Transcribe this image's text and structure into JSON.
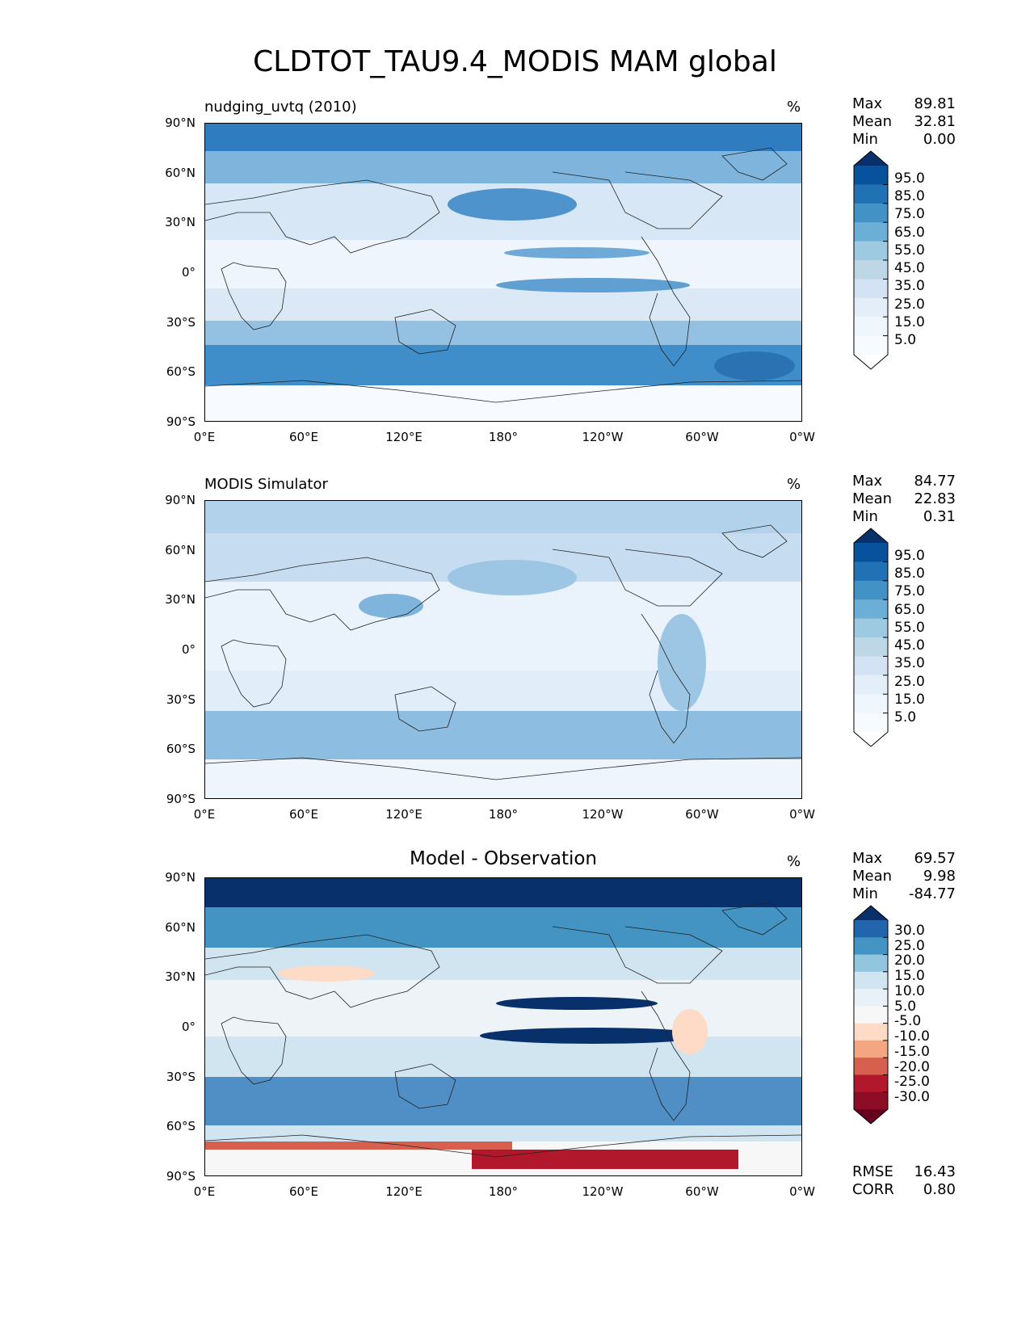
{
  "figure_title": "CLDTOT_TAU9.4_MODIS MAM global",
  "lat_ticks": [
    "90°N",
    "60°N",
    "30°N",
    "0°",
    "30°S",
    "60°S",
    "90°S"
  ],
  "lon_ticks": [
    "0°E",
    "60°E",
    "120°E",
    "180°",
    "120°W",
    "60°W",
    "0°W"
  ],
  "panels": [
    {
      "title": "nudging_uvtq (2010)",
      "units": "%",
      "stats": {
        "max_label": "Max",
        "max": "89.81",
        "mean_label": "Mean",
        "mean": "32.81",
        "min_label": "Min",
        "min": "0.00"
      },
      "colorbar_labels": [
        "95.0",
        "85.0",
        "75.0",
        "65.0",
        "55.0",
        "45.0",
        "35.0",
        "25.0",
        "15.0",
        "5.0"
      ],
      "colorbar_colors": [
        "#08306b",
        "#08519c",
        "#2171b5",
        "#4292c6",
        "#6baed6",
        "#9ecae1",
        "#bdd7e7",
        "#d4e3f3",
        "#e3eef9",
        "#f0f6fd",
        "#f7fbff",
        "#ffffff"
      ]
    },
    {
      "title": "MODIS Simulator",
      "units": "%",
      "stats": {
        "max_label": "Max",
        "max": "84.77",
        "mean_label": "Mean",
        "mean": "22.83",
        "min_label": "Min",
        "min": "0.31"
      },
      "colorbar_labels": [
        "95.0",
        "85.0",
        "75.0",
        "65.0",
        "55.0",
        "45.0",
        "35.0",
        "25.0",
        "15.0",
        "5.0"
      ],
      "colorbar_colors": [
        "#08306b",
        "#08519c",
        "#2171b5",
        "#4292c6",
        "#6baed6",
        "#9ecae1",
        "#bdd7e7",
        "#d4e3f3",
        "#e3eef9",
        "#f0f6fd",
        "#f7fbff",
        "#ffffff"
      ]
    },
    {
      "title": "Model - Observation",
      "units": "%",
      "stats": {
        "max_label": "Max",
        "max": "69.57",
        "mean_label": "Mean",
        "mean": "9.98",
        "min_label": "Min",
        "min": "-84.77"
      },
      "colorbar_labels": [
        "30.0",
        "25.0",
        "20.0",
        "15.0",
        "10.0",
        "5.0",
        "-5.0",
        "-10.0",
        "-15.0",
        "-20.0",
        "-25.0",
        "-30.0"
      ],
      "colorbar_colors": [
        "#08306b",
        "#2166ac",
        "#4393c3",
        "#92c5de",
        "#d1e5f0",
        "#e8f1f8",
        "#f7f7f7",
        "#fddbc7",
        "#f4a582",
        "#d6604d",
        "#b2182b",
        "#8c0d25",
        "#67001f"
      ],
      "extra": {
        "rmse_label": "RMSE",
        "rmse": "16.43",
        "corr_label": "CORR",
        "corr": "0.80"
      }
    }
  ]
}
